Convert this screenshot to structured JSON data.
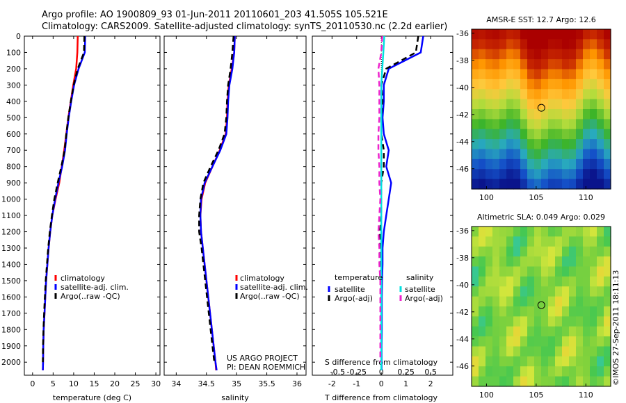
{
  "header": {
    "line1": "Argo profile: AO 1900809_93 01-Jun-2011 20110601_203 41.505S 105.521E",
    "line2": "Climatology: CARS2009. Satellite-adjusted climatology: synTS_20110530.nc (2.2d earlier)"
  },
  "stamp": "©IMOS 27-Sep-2011 18:11:13",
  "colors": {
    "climatology": "#ff0000",
    "satellite": "#0000ff",
    "argo": "#000000",
    "sal_satellite": "#00e0e0",
    "sal_argo": "#ee22cc"
  },
  "chart_data": [
    {
      "id": "temperature",
      "type": "line",
      "xlabel": "temperature (deg C)",
      "xlim": [
        -2,
        31
      ],
      "xticks": [
        0,
        5,
        10,
        15,
        20,
        25,
        30
      ],
      "ylim": [
        2080,
        0
      ],
      "yticks": [
        0,
        100,
        200,
        300,
        400,
        500,
        600,
        700,
        800,
        900,
        1000,
        1100,
        1200,
        1300,
        1400,
        1500,
        1600,
        1700,
        1800,
        1900,
        2000
      ],
      "legend": [
        "climatology",
        "satellite-adj. clim.",
        "Argo(..raw -QC)"
      ],
      "series": [
        {
          "name": "climatology",
          "color": "#ff0000",
          "x": [
            11.0,
            10.9,
            10.6,
            9.9,
            9.3,
            8.7,
            8.2,
            7.7,
            7.1,
            6.5,
            5.6,
            4.8,
            4.3,
            3.9,
            3.6,
            3.3,
            3.1,
            2.9,
            2.7,
            2.6,
            2.55,
            2.5
          ],
          "y": [
            0,
            100,
            200,
            300,
            400,
            500,
            600,
            700,
            800,
            900,
            1000,
            1100,
            1200,
            1300,
            1400,
            1500,
            1600,
            1700,
            1800,
            1900,
            2000,
            2050
          ]
        },
        {
          "name": "satellite-adj. clim.",
          "color": "#0000ff",
          "x": [
            12.8,
            12.7,
            11.2,
            10.1,
            9.4,
            8.8,
            8.3,
            7.9,
            7.2,
            6.3,
            5.5,
            4.8,
            4.3,
            3.9,
            3.6,
            3.3,
            3.1,
            2.9,
            2.7,
            2.6,
            2.55,
            2.5
          ],
          "y": [
            0,
            100,
            200,
            300,
            400,
            500,
            600,
            700,
            800,
            900,
            1000,
            1100,
            1200,
            1300,
            1400,
            1500,
            1600,
            1700,
            1800,
            1900,
            2000,
            2050
          ]
        },
        {
          "name": "Argo(..raw -QC)",
          "color": "#000000",
          "x": [
            12.6,
            12.5,
            11.0,
            10.0,
            9.3,
            8.7,
            8.2,
            7.8,
            7.0,
            6.1,
            5.3,
            4.7,
            4.2,
            3.8,
            3.5,
            3.2,
            3.0,
            2.8,
            2.65,
            2.55,
            2.5
          ],
          "y": [
            0,
            100,
            200,
            300,
            400,
            500,
            600,
            700,
            800,
            900,
            1000,
            1100,
            1200,
            1300,
            1400,
            1500,
            1600,
            1700,
            1800,
            1900,
            2000
          ]
        }
      ]
    },
    {
      "id": "salinity",
      "type": "line",
      "xlabel": "salinity",
      "xlim": [
        33.8,
        36.15
      ],
      "xticks": [
        34,
        34.5,
        35,
        35.5,
        36
      ],
      "ylim": [
        2080,
        0
      ],
      "legend": [
        "climatology",
        "satellite-adj. clim.",
        "Argo(..raw -QC)"
      ],
      "annotation": [
        "US ARGO PROJECT",
        "PI: DEAN ROEMMICH"
      ],
      "series": [
        {
          "name": "climatology",
          "color": "#ff0000",
          "x": [
            34.97,
            34.96,
            34.92,
            34.87,
            34.85,
            34.84,
            34.82,
            34.72,
            34.6,
            34.48,
            34.42,
            34.4,
            34.41,
            34.44,
            34.47,
            34.5,
            34.53,
            34.56,
            34.59,
            34.62,
            34.65,
            34.66
          ],
          "y": [
            0,
            100,
            200,
            300,
            400,
            500,
            600,
            700,
            800,
            900,
            1000,
            1100,
            1200,
            1300,
            1400,
            1500,
            1600,
            1700,
            1800,
            1900,
            2000,
            2050
          ]
        },
        {
          "name": "satellite-adj. clim.",
          "color": "#0000ff",
          "x": [
            34.97,
            34.96,
            34.93,
            34.88,
            34.86,
            34.85,
            34.83,
            34.73,
            34.6,
            34.47,
            34.41,
            34.4,
            34.41,
            34.44,
            34.47,
            34.5,
            34.53,
            34.56,
            34.59,
            34.62,
            34.65,
            34.67
          ],
          "y": [
            0,
            100,
            200,
            300,
            400,
            500,
            600,
            700,
            800,
            900,
            1000,
            1100,
            1200,
            1300,
            1400,
            1500,
            1600,
            1700,
            1800,
            1900,
            2000,
            2050
          ]
        },
        {
          "name": "Argo(..raw -QC)",
          "color": "#000000",
          "x": [
            34.95,
            34.93,
            34.9,
            34.86,
            34.84,
            34.83,
            34.8,
            34.7,
            34.57,
            34.45,
            34.4,
            34.38,
            34.38,
            34.42,
            34.45,
            34.48,
            34.51,
            34.54,
            34.57,
            34.6,
            34.63
          ],
          "y": [
            0,
            100,
            200,
            300,
            400,
            500,
            600,
            700,
            800,
            900,
            1000,
            1100,
            1200,
            1300,
            1400,
            1500,
            1600,
            1700,
            1800,
            1900,
            2000
          ]
        }
      ]
    },
    {
      "id": "differences",
      "type": "line",
      "xlabel": "T difference from climatology",
      "xlabel_top": "S difference from climatology",
      "xlim": [
        -2.8,
        2.9
      ],
      "xticks": [
        -2,
        -1,
        0,
        1,
        2
      ],
      "sticks": [
        "-0.5",
        "-0.25",
        "0",
        "0.25",
        "0.5"
      ],
      "ylim": [
        2080,
        0
      ],
      "legend_left_title": "temperature",
      "legend_right_title": "salinity",
      "legend_left": [
        "satellite",
        "Argo(-adj)"
      ],
      "legend_right": [
        "satellite",
        "Argo(-adj)"
      ],
      "series": [
        {
          "name": "T satellite",
          "color": "#0000ff",
          "x": [
            1.7,
            1.6,
            0.3,
            0.1,
            0.1,
            0.05,
            0.1,
            0.3,
            0.2,
            0.4,
            0.3,
            0.2,
            0.1,
            0.05,
            0.05,
            0.03,
            0.02,
            0.02,
            0.02,
            0.01,
            0.01,
            0.01
          ],
          "y": [
            0,
            100,
            200,
            300,
            400,
            500,
            600,
            700,
            800,
            900,
            1000,
            1100,
            1200,
            1300,
            1400,
            1500,
            1600,
            1700,
            1800,
            1900,
            2000,
            2050
          ]
        },
        {
          "name": "T Argo(-adj)",
          "color": "#000000",
          "x": [
            1.5,
            1.4,
            0.2,
            0.0,
            0.05,
            0.0,
            0.0,
            0.1,
            0.1,
            0.0,
            0.0,
            0.0,
            -0.05,
            -0.05,
            -0.03,
            -0.03,
            -0.02,
            -0.02,
            -0.02,
            -0.02,
            -0.02
          ],
          "y": [
            0,
            100,
            200,
            300,
            400,
            500,
            600,
            700,
            800,
            900,
            1000,
            1100,
            1200,
            1300,
            1400,
            1500,
            1600,
            1700,
            1800,
            1900,
            2000
          ]
        },
        {
          "name": "S satellite",
          "color": "#00e0e0",
          "x": [
            0.03,
            0.02,
            0.01,
            0.0,
            0.0,
            0.0,
            0.0,
            0.0,
            0.0,
            0.0,
            0.0,
            0.0,
            0.0,
            0.0,
            0.0,
            0.0,
            0.0,
            0.0,
            0.0,
            0.0,
            0.0,
            0.0
          ],
          "y": [
            0,
            100,
            200,
            300,
            400,
            500,
            600,
            700,
            800,
            900,
            1000,
            1100,
            1200,
            1300,
            1400,
            1500,
            1600,
            1700,
            1800,
            1900,
            2000,
            2050
          ]
        },
        {
          "name": "S Argo(-adj)",
          "color": "#ee22cc",
          "x": [
            0.01,
            0.0,
            -0.03,
            -0.02,
            -0.02,
            -0.02,
            -0.03,
            -0.03,
            -0.02,
            -0.02,
            -0.01,
            -0.02,
            -0.03,
            -0.02,
            -0.02,
            -0.01,
            -0.01,
            -0.01,
            -0.01,
            -0.01,
            -0.01
          ],
          "y": [
            0,
            100,
            200,
            300,
            400,
            500,
            600,
            700,
            800,
            900,
            1000,
            1100,
            1200,
            1300,
            1400,
            1500,
            1600,
            1700,
            1800,
            1900,
            2000
          ]
        }
      ]
    },
    {
      "id": "sst_map",
      "type": "heatmap",
      "title": "AMSR-E SST: 12.7 Argo: 12.6",
      "xticks": [
        100,
        105,
        110
      ],
      "yticks": [
        -36,
        -38,
        -40,
        -42,
        -44,
        -46
      ],
      "xlim": [
        98.5,
        112.5
      ],
      "ylim": [
        -47.5,
        -35.7
      ],
      "marker": {
        "lon": 105.521,
        "lat": -41.505
      }
    },
    {
      "id": "sla_map",
      "type": "heatmap",
      "title": "Altimetric SLA: 0.049 Argo: 0.029",
      "xticks": [
        100,
        105,
        110
      ],
      "yticks": [
        -36,
        -38,
        -40,
        -42,
        -44,
        -46
      ],
      "xlim": [
        98.5,
        112.5
      ],
      "ylim": [
        -47.5,
        -35.7
      ],
      "marker": {
        "lon": 105.521,
        "lat": -41.505
      }
    }
  ]
}
